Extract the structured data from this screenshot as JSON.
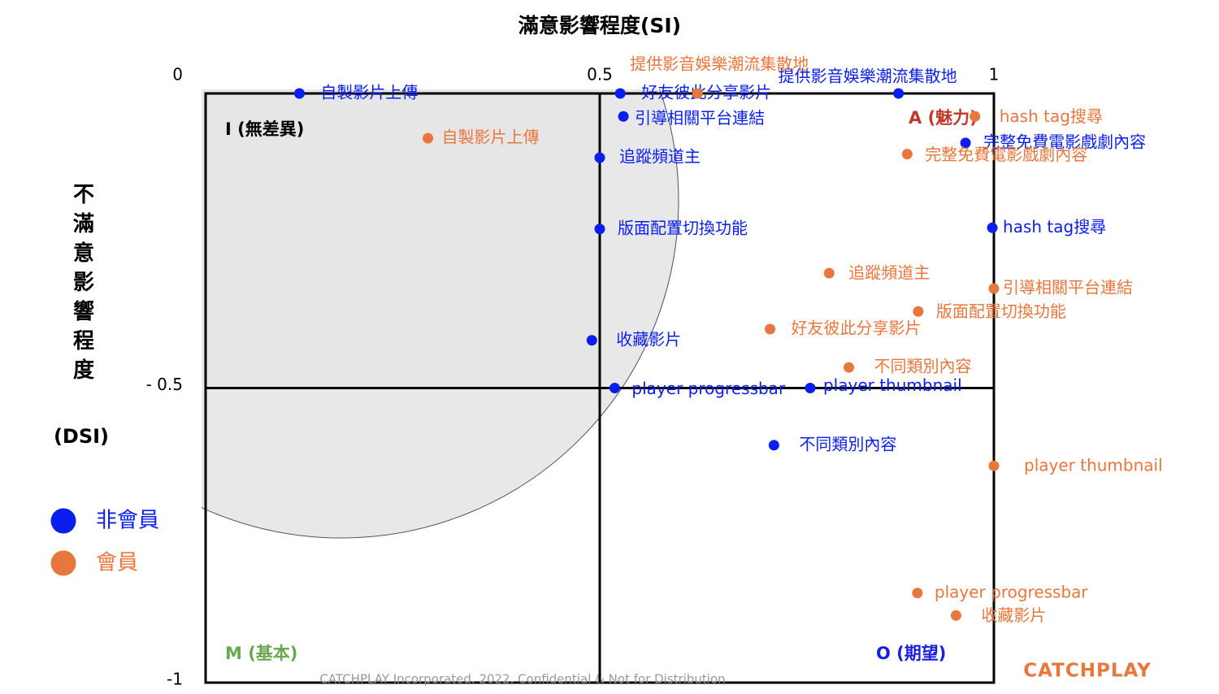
{
  "chart_data": {
    "type": "scatter",
    "title": "滿意影響程度(SI)",
    "y_label": "不滿意影響程度",
    "y_label_unit": "(DSI)",
    "xlim": [
      0,
      1
    ],
    "ylim": [
      -1,
      0
    ],
    "xticks": [
      0.5,
      1
    ],
    "yticks": [
      0,
      {
        "value": -0.5,
        "label": "- 0.5"
      },
      -1
    ],
    "quadrants": [
      "I (無差異)",
      "A (魅力)",
      "M (基本)",
      "O (期望)"
    ],
    "series": [
      {
        "name": "非會員",
        "color": "#0b1ef0",
        "labels": [
          "自製影片上傳",
          "好友彼此分享影片",
          "提供影音娛樂潮流集散地",
          "引導相關平台連結",
          "完整免費電影戲劇內容",
          "追蹤頻道主",
          "版面配置切換功能",
          "hash tag搜尋",
          "收藏影片",
          "player progressbar",
          "player thumbnail",
          "不同類別內容"
        ],
        "x": [
          0.119,
          0.526,
          0.879,
          0.53,
          0.964,
          0.5,
          0.5,
          0.998,
          0.49,
          0.519,
          0.767,
          0.721
        ],
        "y": [
          0,
          0,
          0,
          -0.039,
          -0.084,
          -0.109,
          -0.23,
          -0.228,
          -0.419,
          -0.5,
          -0.5,
          -0.597
        ]
      },
      {
        "name": "會員",
        "color": "#e8773d",
        "labels": [
          "提供影音娛樂潮流集散地",
          "hash tag搜尋",
          "自製影片上傳",
          "完整免費電影戲劇內容",
          "追蹤頻道主",
          "引導相關平台連結",
          "版面配置切換功能",
          "好友彼此分享影片",
          "不同類別內容",
          "player thumbnail",
          "player progressbar",
          "收藏影片"
        ],
        "x": [
          0.624,
          0.976,
          0.282,
          0.89,
          0.791,
          1.0,
          0.904,
          0.716,
          0.816,
          1.0,
          0.903,
          0.952
        ],
        "y": [
          0,
          -0.039,
          -0.076,
          -0.103,
          -0.305,
          -0.331,
          -0.37,
          -0.4,
          -0.465,
          -0.632,
          -0.848,
          -0.886
        ]
      }
    ],
    "footer": "CATCHPLAY Incorporated. 2022. Confidential & Not for Distribution",
    "logo": "CATCHPLAY"
  }
}
